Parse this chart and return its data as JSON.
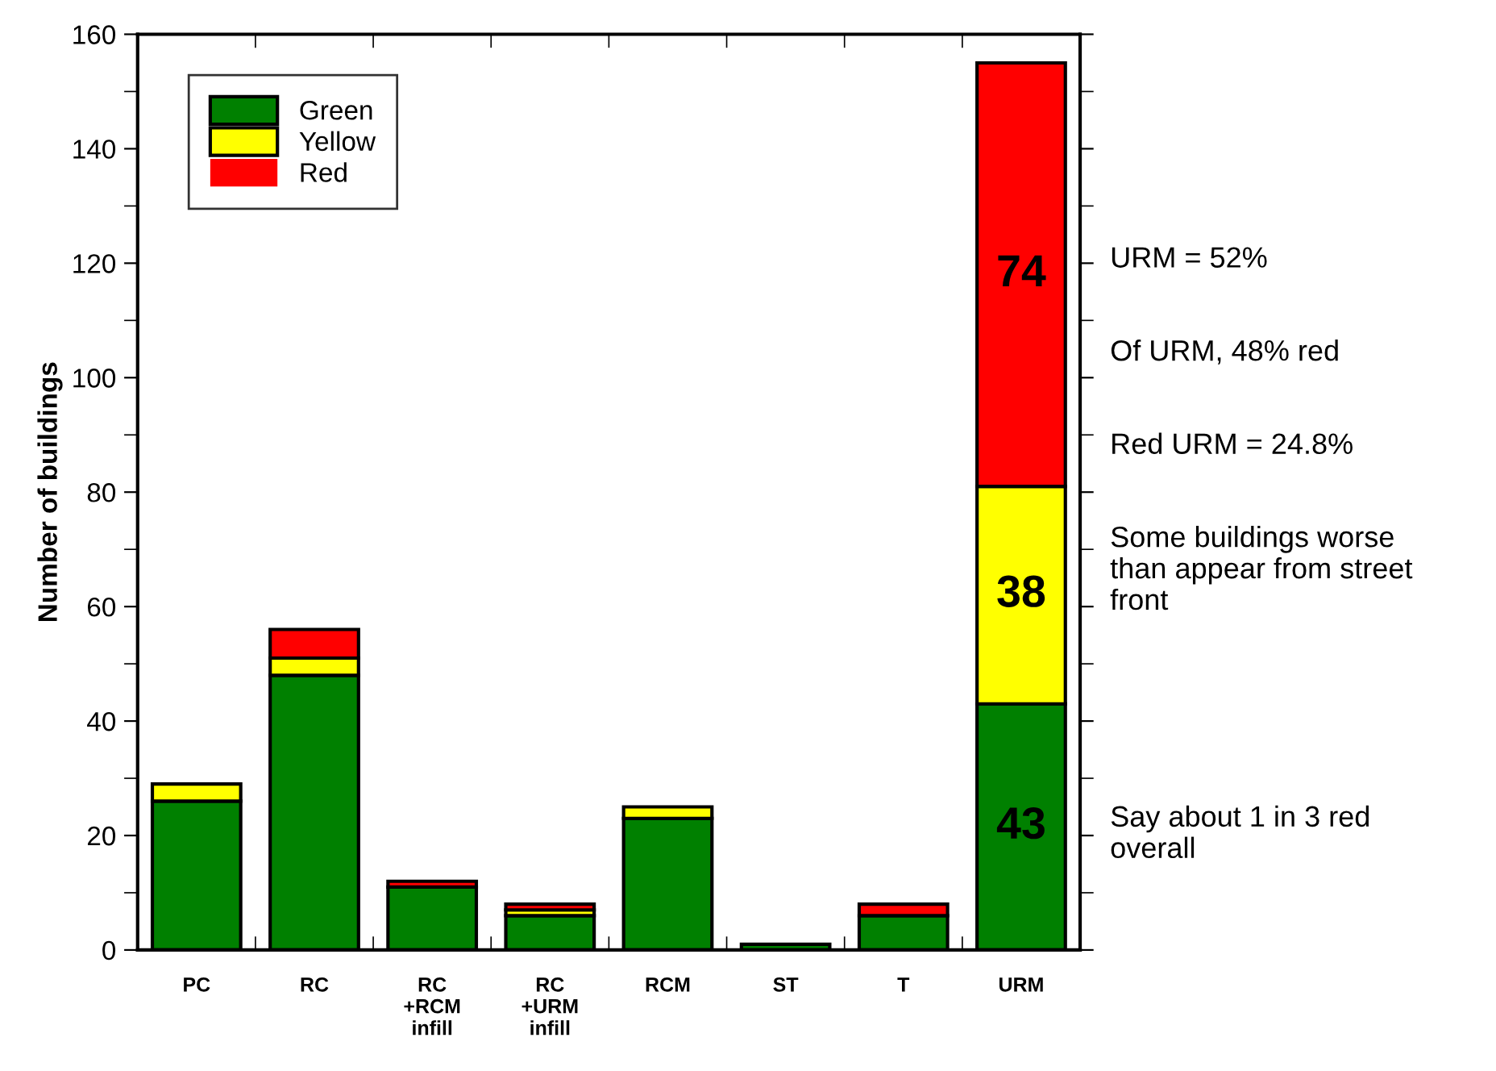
{
  "chart_data": {
    "type": "bar",
    "stacked": true,
    "ylabel": "Number of buildings",
    "categories": [
      "PC",
      "RC",
      "RC\n+RCM\ninfill",
      "RC\n+URM\ninfill",
      "RCM",
      "ST",
      "T",
      "URM"
    ],
    "series": [
      {
        "name": "Green",
        "color": "#008000",
        "values": [
          26,
          48,
          11,
          6,
          23,
          1,
          6,
          43
        ],
        "value_labels": [
          null,
          null,
          null,
          null,
          null,
          null,
          null,
          "43"
        ]
      },
      {
        "name": "Yellow",
        "color": "#ffff00",
        "values": [
          3,
          3,
          0,
          1,
          2,
          0,
          0,
          38
        ],
        "value_labels": [
          null,
          null,
          null,
          null,
          null,
          null,
          null,
          "38"
        ]
      },
      {
        "name": "Red",
        "color": "#ff0000",
        "values": [
          0,
          5,
          1,
          1,
          0,
          0,
          2,
          74
        ],
        "value_labels": [
          null,
          null,
          null,
          null,
          null,
          null,
          null,
          "74"
        ]
      }
    ],
    "ylim": [
      0,
      160
    ],
    "yticks": [
      0,
      20,
      40,
      60,
      80,
      100,
      120,
      140,
      160
    ],
    "grid": false,
    "legend": "top left",
    "annotations": [
      "URM = 52%",
      "Of URM, 48% red",
      "Red URM = 24.8%",
      "Some buildings worse\nthan appear from street\nfront",
      "Say about 1 in 3 red\noverall"
    ]
  }
}
